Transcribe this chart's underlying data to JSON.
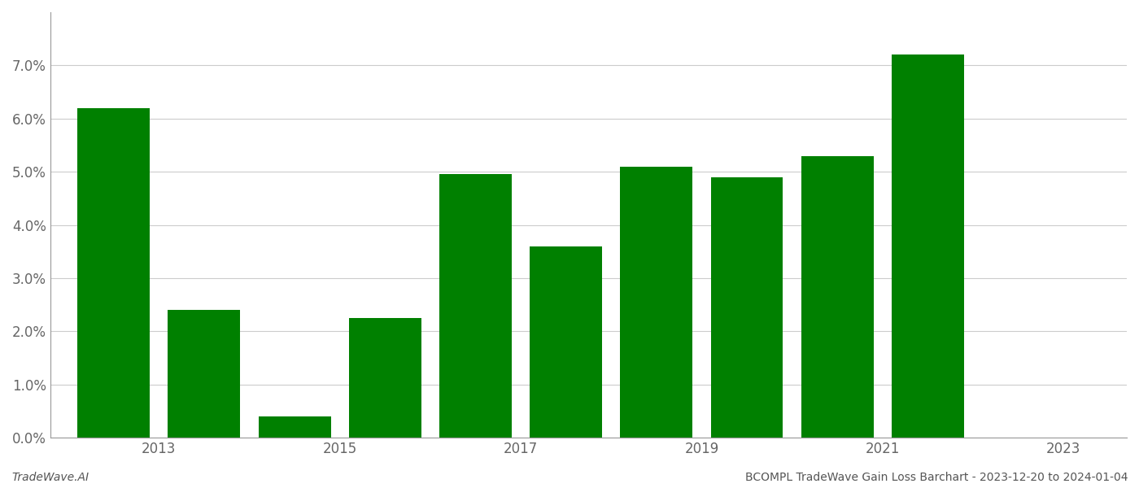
{
  "years": [
    2013,
    2014,
    2015,
    2016,
    2017,
    2018,
    2019,
    2020,
    2021,
    2022
  ],
  "values": [
    0.062,
    0.024,
    0.004,
    0.0225,
    0.0495,
    0.036,
    0.051,
    0.049,
    0.053,
    0.072
  ],
  "bar_color": "#008000",
  "background_color": "#ffffff",
  "grid_color": "#cccccc",
  "ylim": [
    0,
    0.08
  ],
  "yticks": [
    0.0,
    0.01,
    0.02,
    0.03,
    0.04,
    0.05,
    0.06,
    0.07
  ],
  "xtick_labels": [
    "2013",
    "2015",
    "2017",
    "2019",
    "2021",
    "2023"
  ],
  "tick_label_fontsize": 12,
  "footer_left": "TradeWave.AI",
  "footer_right": "BCOMPL TradeWave Gain Loss Barchart - 2023-12-20 to 2024-01-04",
  "footer_fontsize": 10,
  "bar_width": 0.8,
  "spine_color": "#999999",
  "tick_color": "#666666"
}
